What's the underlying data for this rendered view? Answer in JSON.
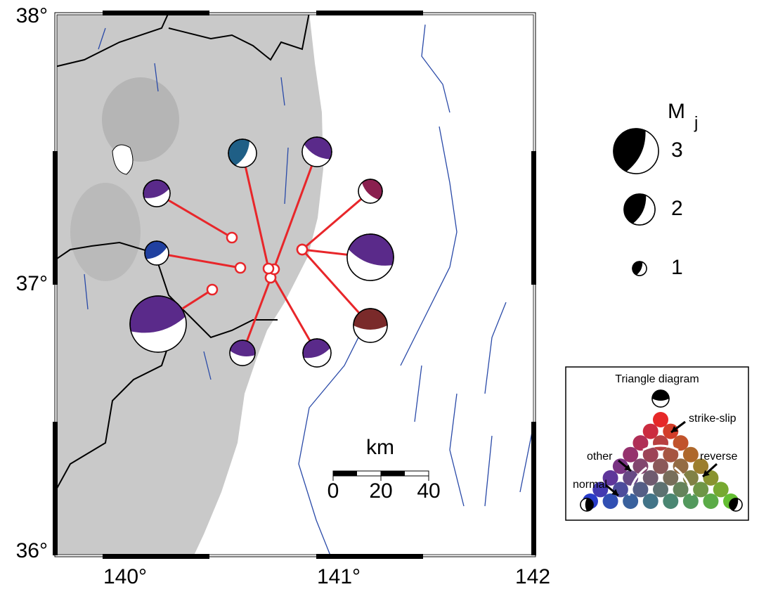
{
  "map": {
    "lat_labels": [
      "38°",
      "37°",
      "36°"
    ],
    "lon_labels": [
      "140°",
      "141°",
      "142"
    ]
  },
  "scale_bar": {
    "unit": "km",
    "labels": [
      "0",
      "20",
      "40"
    ]
  },
  "magnitude_legend": {
    "symbol": "M",
    "subscript": "j",
    "labels": [
      "3",
      "2",
      "1"
    ]
  },
  "triangle_diagram": {
    "title": "Triangle diagram",
    "labels": [
      "strike-slip",
      "other",
      "reverse",
      "normal"
    ]
  }
}
